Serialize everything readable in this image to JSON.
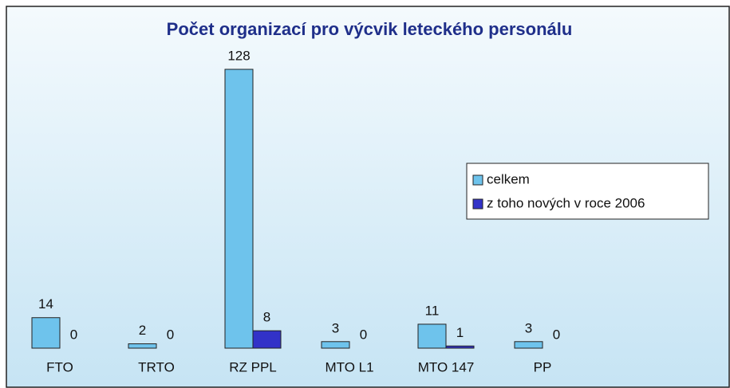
{
  "chart_data": {
    "type": "bar",
    "title": "Počet organizací pro výcvik leteckého personálu",
    "categories": [
      "FTO",
      "TRTO",
      "RZ PPL",
      "MTO L1",
      "MTO 147",
      "PP"
    ],
    "series": [
      {
        "name": "celkem",
        "color": "#6ec3ec",
        "values": [
          14,
          2,
          128,
          3,
          11,
          3
        ]
      },
      {
        "name": "z toho nových v roce 2006",
        "color": "#3232c8",
        "values": [
          0,
          0,
          8,
          0,
          1,
          0
        ]
      }
    ]
  }
}
